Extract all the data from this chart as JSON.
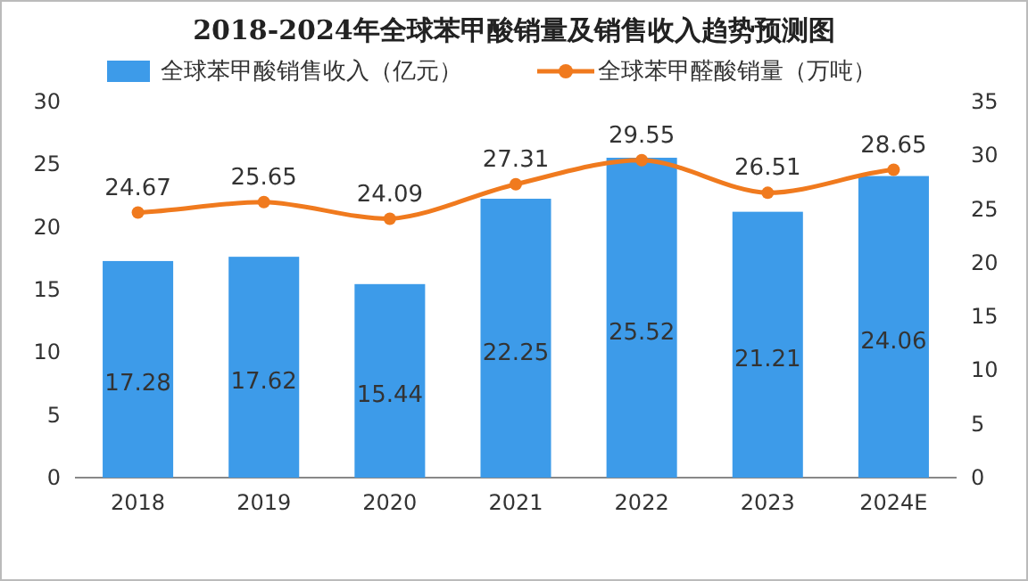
{
  "chart_data": {
    "type": "bar",
    "title": "2018-2024年全球苯甲酸销量及销售收入趋势预测图",
    "categories": [
      "2018",
      "2019",
      "2020",
      "2021",
      "2022",
      "2023",
      "2024E"
    ],
    "series": [
      {
        "name": "全球苯甲酸销售收入（亿元）",
        "color": "#3d9be9",
        "values": [
          17.28,
          17.62,
          15.44,
          22.25,
          25.52,
          21.21,
          24.06
        ]
      },
      {
        "name": "全球苯甲醛酸销量（万吨）",
        "type": "line",
        "axis": "y2",
        "marker": "circle",
        "color": "#f07a1e",
        "values": [
          24.67,
          25.65,
          24.09,
          27.31,
          29.55,
          26.51,
          28.65
        ]
      }
    ],
    "ylim": [
      0,
      30
    ],
    "yticks": [
      0,
      5,
      10,
      15,
      20,
      25,
      30
    ],
    "y2lim": [
      0,
      35
    ],
    "y2ticks": [
      0,
      5,
      10,
      15,
      20,
      25,
      30,
      35
    ],
    "data_labels": true,
    "legend": "top",
    "grid": false
  }
}
